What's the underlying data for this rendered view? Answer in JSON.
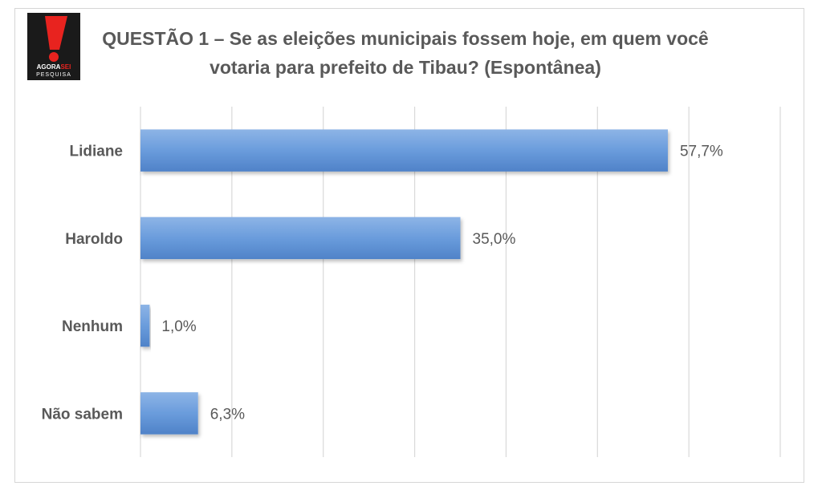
{
  "logo": {
    "word_a": "AGORA",
    "word_b": "SEI",
    "subtitle": "PESQUISA",
    "colors": {
      "red": "#e8231f",
      "black": "#1a1a1a",
      "white": "#ffffff"
    }
  },
  "chart_data": {
    "type": "bar",
    "orientation": "horizontal",
    "title_lines": [
      "QUESTÃO 1 – Se as eleições municipais fossem hoje, em quem você",
      "votaria para prefeito de Tibau? (Espontânea)"
    ],
    "categories": [
      "Lidiane",
      "Haroldo",
      "Nenhum",
      "Não sabem"
    ],
    "values": [
      57.7,
      35.0,
      1.0,
      6.3
    ],
    "data_labels": [
      "57,7%",
      "35,0%",
      "1,0%",
      "6,3%"
    ],
    "xlim": [
      0,
      70
    ],
    "x_gridline_step": 10,
    "grid": true,
    "legend": "none",
    "bar_color": "#5b8fd3",
    "bar_color_light": "#8db4e6"
  }
}
